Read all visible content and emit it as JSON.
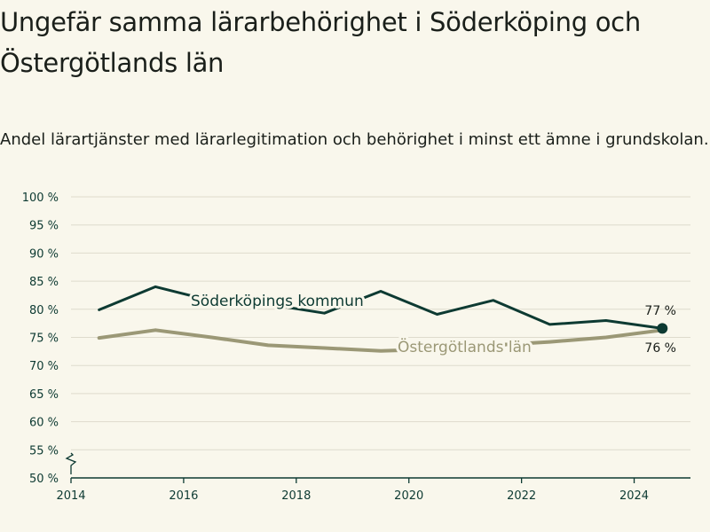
{
  "title": "Ungefär samma lärarbehörighet i Söderköping och Östergötlands län",
  "subtitle": "Andel lärartjänster med lärarlegitimation och behörighet i minst ett ämne i grundskolan.",
  "chart_data": {
    "type": "line",
    "title": "Ungefär samma lärarbehörighet i Söderköping och Östergötlands län",
    "subtitle": "Andel lärartjänster med lärarlegitimation och behörighet i minst ett ämne i grundskolan.",
    "xlabel": "",
    "ylabel": "",
    "xlim": [
      2014,
      2025
    ],
    "ylim": [
      50,
      100
    ],
    "y_axis_break": true,
    "grid": true,
    "x_ticks": [
      2014,
      2016,
      2018,
      2020,
      2022,
      2024
    ],
    "x_tick_labels": [
      "2014",
      "2016",
      "2018",
      "2020",
      "2022",
      "2024"
    ],
    "y_ticks": [
      50,
      55,
      60,
      65,
      70,
      75,
      80,
      85,
      90,
      95,
      100
    ],
    "y_tick_labels": [
      "50 %",
      "55 %",
      "60 %",
      "65 %",
      "70 %",
      "75 %",
      "80 %",
      "85 %",
      "90 %",
      "95 %",
      "100 %"
    ],
    "x": [
      2014.5,
      2015.5,
      2016.5,
      2017.5,
      2018.5,
      2019.5,
      2020.5,
      2021.5,
      2022.5,
      2023.5,
      2024.5
    ],
    "series": [
      {
        "name": "Söderköpings kommun",
        "color": "#0d3a32",
        "values": [
          79.9,
          84.0,
          81.5,
          80.9,
          79.3,
          83.2,
          79.1,
          81.6,
          77.3,
          78.0,
          76.6
        ],
        "end_label": "77 %"
      },
      {
        "name": "Östergötlands län",
        "color": "#9b9876",
        "values": [
          74.9,
          76.3,
          75.0,
          73.6,
          73.1,
          72.6,
          72.9,
          73.6,
          74.2,
          75.0,
          76.3
        ],
        "end_label": "76 %"
      }
    ]
  }
}
